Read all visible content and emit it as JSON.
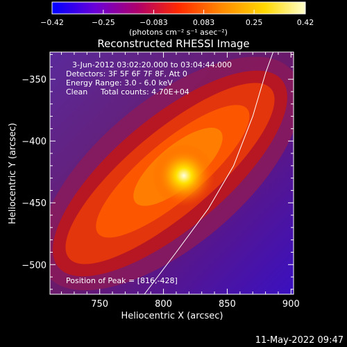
{
  "chart_data": {
    "type": "heatmap",
    "title": "Reconstructed RHESSI Image",
    "xlabel": "Heliocentric X (arcsec)",
    "ylabel": "Heliocentric Y (arcsec)",
    "xlim": [
      711,
      902
    ],
    "ylim": [
      -524,
      -328
    ],
    "xticks": [
      750,
      800,
      850,
      900
    ],
    "yticks": [
      -350,
      -400,
      -450,
      -500
    ],
    "colorbar": {
      "ticks": [
        -0.42,
        -0.25,
        -0.083,
        0.083,
        0.25,
        0.42
      ],
      "tick_labels": [
        "-0.42",
        "-0.25",
        "-0.083",
        "0.083",
        "0.25",
        "0.42"
      ],
      "unit_label": "(photons cm⁻² s⁻¹ asec⁻²)",
      "colormap": [
        "#0000ff",
        "#6a00d8",
        "#b0006a",
        "#ff2a00",
        "#ff8a00",
        "#ffd800",
        "#ffffcc"
      ]
    },
    "info": {
      "line1": "3-Jun-2012 03:02:20.000 to 03:04:44.000",
      "line2": "Detectors: 3F 5F 6F 7F 8F, Att 0",
      "line3": "Energy Range: 3.0 - 6.0 keV",
      "line4_method": "Clean",
      "line4_counts": "Total counts: 4.70E+04"
    },
    "peak": {
      "x": 816,
      "y": -428,
      "label": "Position of Peak = [816,-428]"
    },
    "limb_curve": [
      [
        785,
        -524
      ],
      [
        810,
        -490
      ],
      [
        835,
        -455
      ],
      [
        855,
        -420
      ],
      [
        870,
        -380
      ],
      [
        880,
        -345
      ],
      [
        886,
        -328
      ]
    ]
  },
  "footer": {
    "date": "11-May-2022 09:47"
  }
}
